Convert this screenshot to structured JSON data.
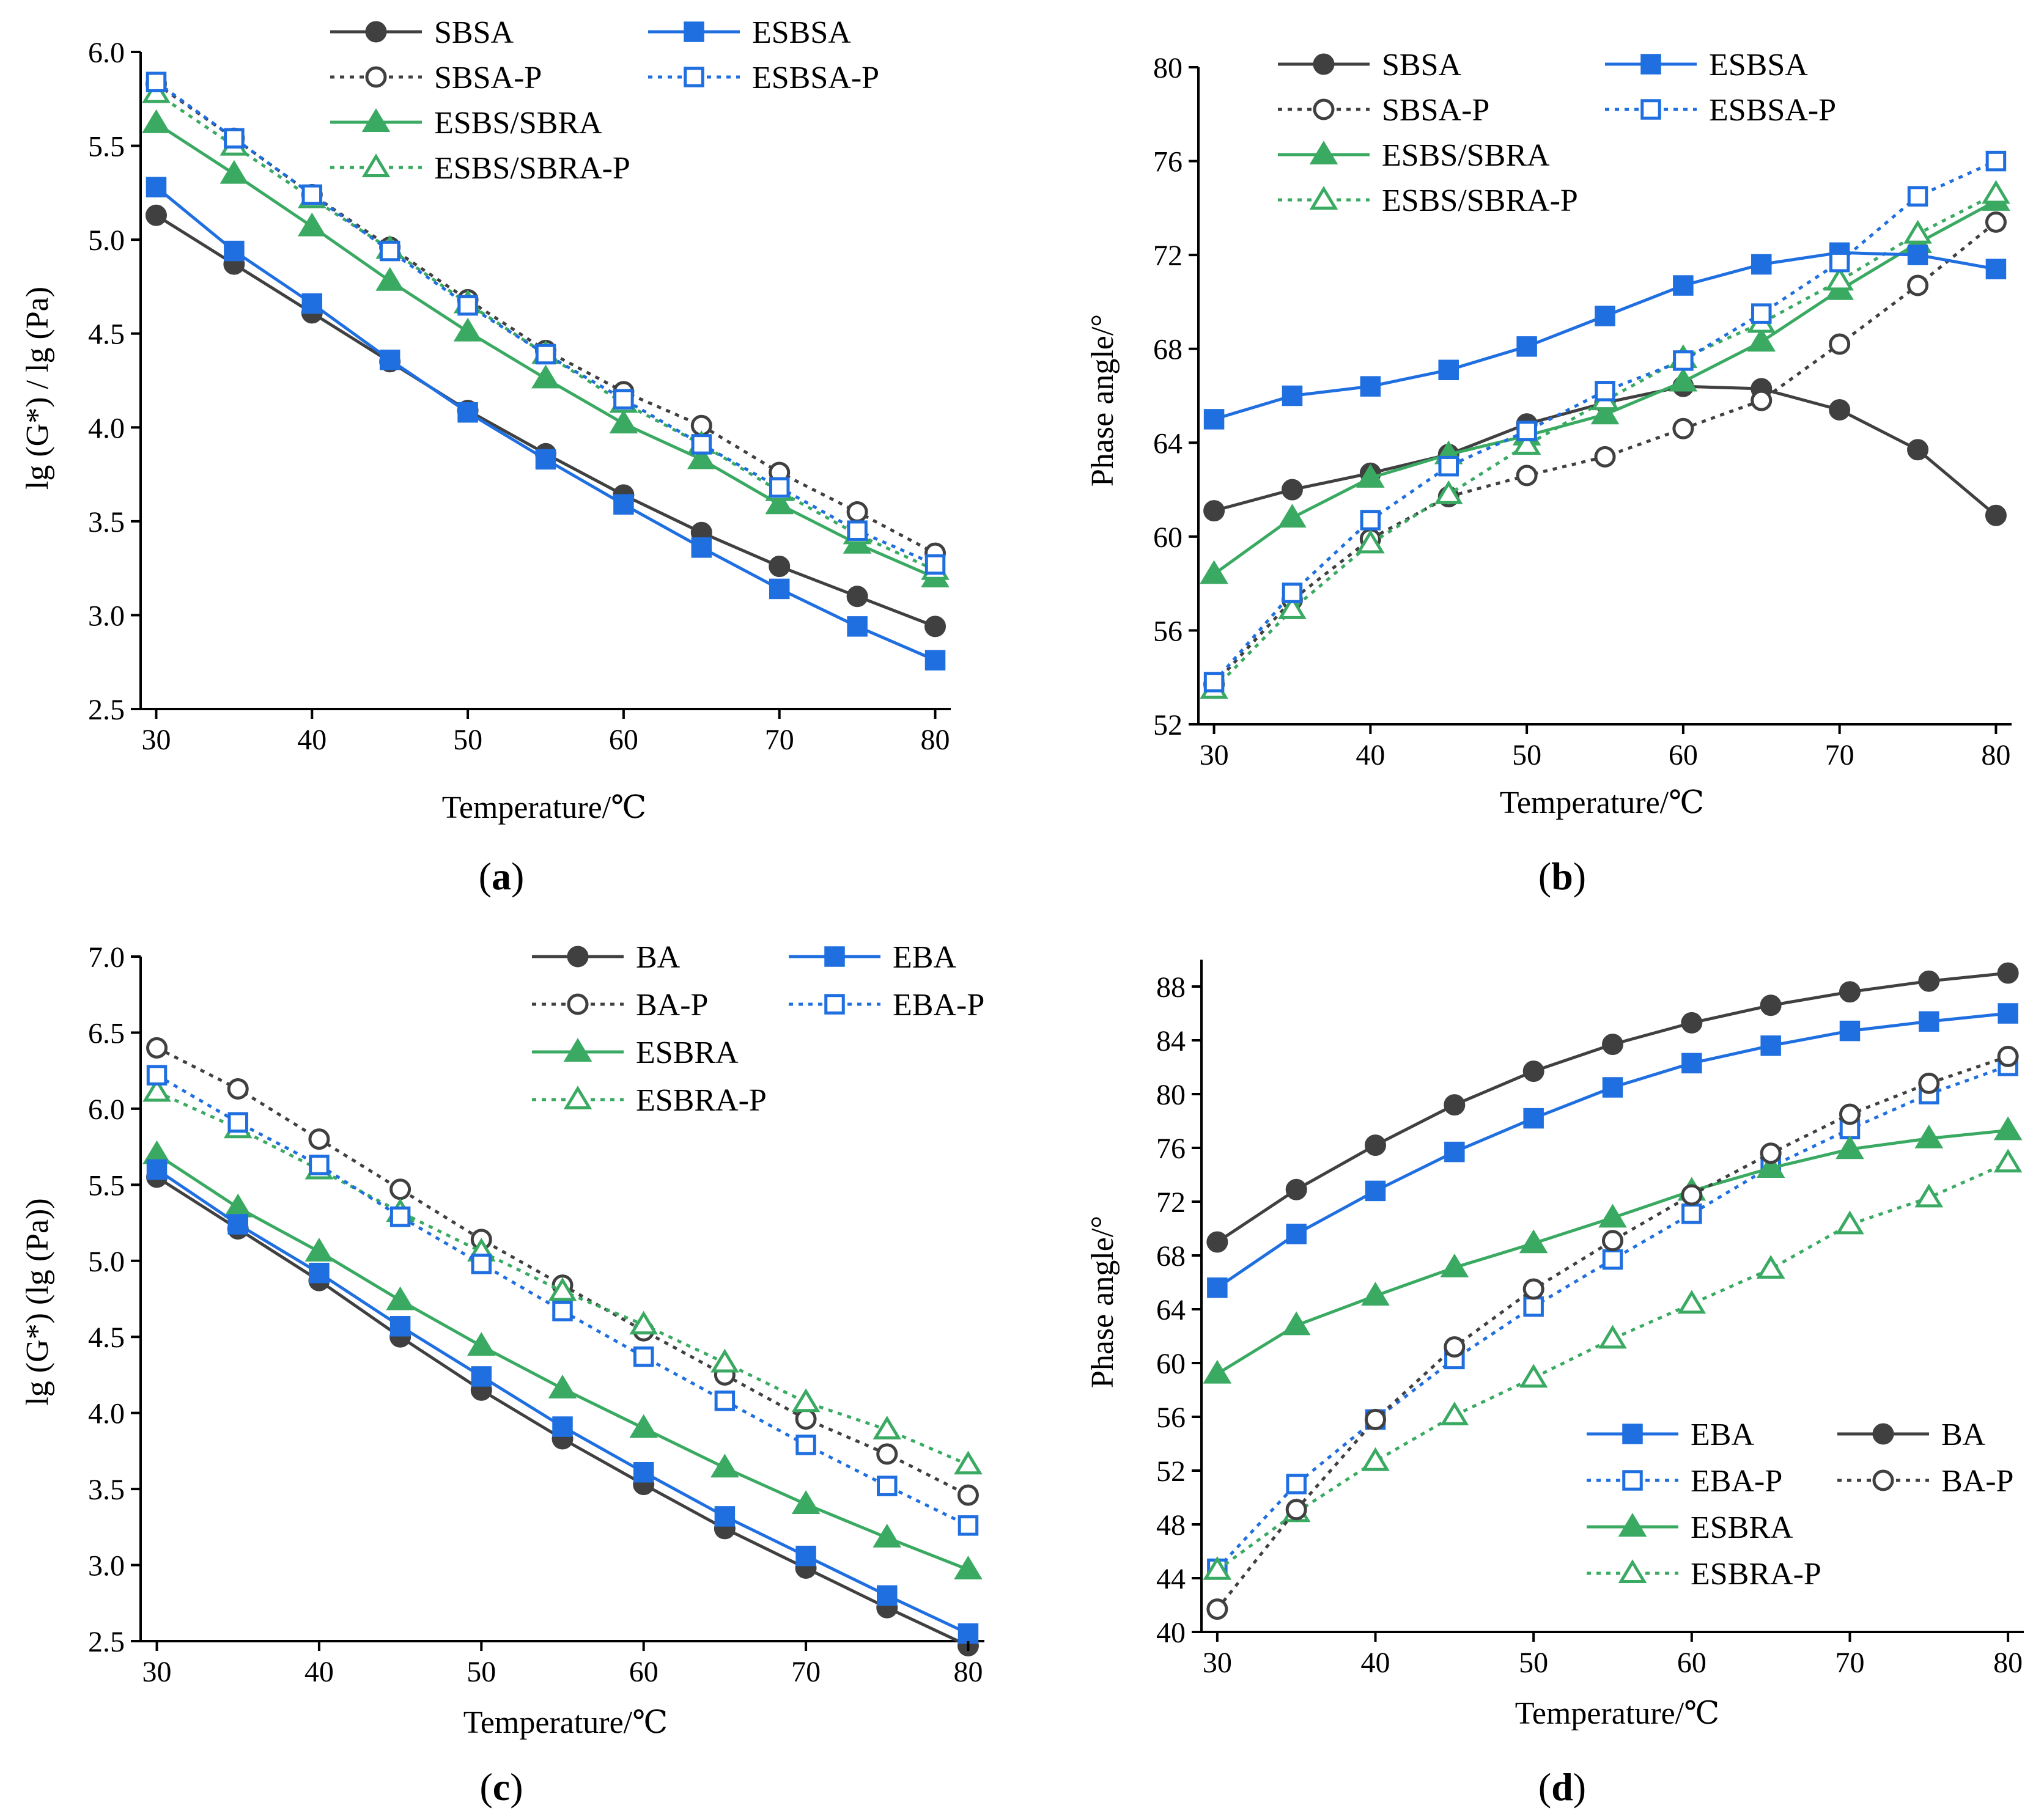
{
  "colors": {
    "gray": "#404040",
    "blue": "#1f6fe0",
    "green": "#3aaa62"
  },
  "chart_data": [
    {
      "panel": "a",
      "caption_letter": "a",
      "type": "line",
      "xlabel": "Temperature/℃",
      "ylabel": "lg (G*) / lg (Pa)",
      "x": [
        30,
        35,
        40,
        45,
        50,
        55,
        60,
        65,
        70,
        75,
        80
      ],
      "xlim": [
        29,
        81
      ],
      "ylim": [
        2.5,
        6.0
      ],
      "xticks": [
        "30",
        "40",
        "50",
        "60",
        "70",
        "80"
      ],
      "yticks": [
        "2.5",
        "3.0",
        "3.5",
        "4.0",
        "4.5",
        "5.0",
        "5.5",
        "6.0"
      ],
      "legend_placement": "top",
      "series": [
        {
          "name": "SBSA",
          "color": "gray",
          "marker": "circle",
          "filled": true,
          "dashed": false,
          "values": [
            5.13,
            4.87,
            4.61,
            4.35,
            4.09,
            3.86,
            3.64,
            3.44,
            3.26,
            3.1,
            2.94
          ]
        },
        {
          "name": "SBSA-P",
          "color": "gray",
          "marker": "circle",
          "filled": false,
          "dashed": true,
          "values": [
            5.83,
            5.54,
            5.24,
            4.96,
            4.68,
            4.41,
            4.19,
            4.01,
            3.76,
            3.55,
            3.33
          ]
        },
        {
          "name": "ESBS/SBRA",
          "color": "green",
          "marker": "triangle",
          "filled": true,
          "dashed": false,
          "values": [
            5.62,
            5.35,
            5.07,
            4.78,
            4.51,
            4.26,
            4.02,
            3.83,
            3.59,
            3.38,
            3.2
          ]
        },
        {
          "name": "ESBS/SBRA-P",
          "color": "green",
          "marker": "triangle",
          "filled": false,
          "dashed": true,
          "values": [
            5.78,
            5.5,
            5.22,
            4.95,
            4.66,
            4.39,
            4.13,
            3.91,
            3.66,
            3.43,
            3.24
          ]
        },
        {
          "name": "ESBSA",
          "color": "blue",
          "marker": "square",
          "filled": true,
          "dashed": false,
          "values": [
            5.28,
            4.94,
            4.66,
            4.36,
            4.08,
            3.83,
            3.59,
            3.36,
            3.14,
            2.94,
            2.76
          ]
        },
        {
          "name": "ESBSA-P",
          "color": "blue",
          "marker": "square",
          "filled": false,
          "dashed": true,
          "values": [
            5.84,
            5.54,
            5.24,
            4.94,
            4.65,
            4.39,
            4.15,
            3.91,
            3.68,
            3.45,
            3.27
          ]
        }
      ]
    },
    {
      "panel": "b",
      "caption_letter": "b",
      "type": "line",
      "xlabel": "Temperature/℃",
      "ylabel": "Phase angle/°",
      "x": [
        30,
        35,
        40,
        45,
        50,
        55,
        60,
        65,
        70,
        75,
        80
      ],
      "xlim": [
        29,
        81
      ],
      "ylim": [
        52,
        80
      ],
      "xticks": [
        "30",
        "40",
        "50",
        "60",
        "70",
        "80"
      ],
      "yticks": [
        "52",
        "56",
        "60",
        "64",
        "68",
        "72",
        "76",
        "80"
      ],
      "legend_placement": "top",
      "series": [
        {
          "name": "SBSA",
          "color": "gray",
          "marker": "circle",
          "filled": true,
          "dashed": false,
          "values": [
            61.1,
            62.0,
            62.7,
            63.5,
            64.8,
            65.7,
            66.4,
            66.3,
            65.4,
            63.7,
            60.9
          ]
        },
        {
          "name": "SBSA-P",
          "color": "gray",
          "marker": "circle",
          "filled": false,
          "dashed": true,
          "values": [
            53.7,
            57.3,
            59.9,
            61.7,
            62.6,
            63.4,
            64.6,
            65.8,
            68.2,
            70.7,
            73.4
          ]
        },
        {
          "name": "ESBS/SBRA",
          "color": "green",
          "marker": "triangle",
          "filled": true,
          "dashed": false,
          "values": [
            58.4,
            60.8,
            62.5,
            63.5,
            64.3,
            65.2,
            66.6,
            68.3,
            70.5,
            72.5,
            74.3
          ]
        },
        {
          "name": "ESBS/SBRA-P",
          "color": "green",
          "marker": "triangle",
          "filled": false,
          "dashed": true,
          "values": [
            53.5,
            56.9,
            59.7,
            61.8,
            63.9,
            65.8,
            67.6,
            69.1,
            70.9,
            72.9,
            74.6
          ]
        },
        {
          "name": "ESBSA",
          "color": "blue",
          "marker": "square",
          "filled": true,
          "dashed": false,
          "values": [
            65.0,
            66.0,
            66.4,
            67.1,
            68.1,
            69.4,
            70.7,
            71.6,
            72.1,
            72.0,
            71.4
          ]
        },
        {
          "name": "ESBSA-P",
          "color": "blue",
          "marker": "square",
          "filled": false,
          "dashed": true,
          "values": [
            53.8,
            57.6,
            60.7,
            63.0,
            64.5,
            66.2,
            67.5,
            69.5,
            71.7,
            74.5,
            76.0
          ]
        }
      ]
    },
    {
      "panel": "c",
      "caption_letter": "c",
      "type": "line",
      "xlabel": "Temperature/℃",
      "ylabel": "lg (G*) (lg (Pa))",
      "x": [
        30,
        35,
        40,
        45,
        50,
        55,
        60,
        65,
        70,
        75,
        80
      ],
      "xlim": [
        29,
        81
      ],
      "ylim": [
        2.5,
        7.0
      ],
      "xticks": [
        "30",
        "40",
        "50",
        "60",
        "70",
        "80"
      ],
      "yticks": [
        "2.5",
        "3.0",
        "3.5",
        "4.0",
        "4.5",
        "5.0",
        "5.5",
        "6.0",
        "6.5",
        "7.0"
      ],
      "legend_placement": "top-right",
      "series": [
        {
          "name": "BA",
          "color": "gray",
          "marker": "circle",
          "filled": true,
          "dashed": false,
          "values": [
            5.55,
            5.21,
            4.87,
            4.5,
            4.15,
            3.83,
            3.53,
            3.24,
            2.98,
            2.72,
            2.47
          ]
        },
        {
          "name": "BA-P",
          "color": "gray",
          "marker": "circle",
          "filled": false,
          "dashed": true,
          "values": [
            6.4,
            6.13,
            5.8,
            5.47,
            5.14,
            4.84,
            4.54,
            4.25,
            3.96,
            3.73,
            3.46
          ]
        },
        {
          "name": "ESBRA",
          "color": "green",
          "marker": "triangle",
          "filled": true,
          "dashed": false,
          "values": [
            5.7,
            5.35,
            5.06,
            4.74,
            4.44,
            4.16,
            3.9,
            3.64,
            3.4,
            3.18,
            2.97
          ]
        },
        {
          "name": "ESBRA-P",
          "color": "green",
          "marker": "triangle",
          "filled": false,
          "dashed": true,
          "values": [
            6.11,
            5.87,
            5.6,
            5.32,
            5.06,
            4.8,
            4.58,
            4.33,
            4.07,
            3.89,
            3.66
          ]
        },
        {
          "name": "EBA",
          "color": "blue",
          "marker": "square",
          "filled": true,
          "dashed": false,
          "values": [
            5.6,
            5.24,
            4.92,
            4.57,
            4.24,
            3.91,
            3.61,
            3.32,
            3.06,
            2.8,
            2.55
          ]
        },
        {
          "name": "EBA-P",
          "color": "blue",
          "marker": "square",
          "filled": false,
          "dashed": true,
          "values": [
            6.22,
            5.91,
            5.63,
            5.29,
            4.98,
            4.67,
            4.37,
            4.08,
            3.79,
            3.52,
            3.26
          ]
        }
      ]
    },
    {
      "panel": "d",
      "caption_letter": "d",
      "type": "line",
      "xlabel": "Temperature/℃",
      "ylabel": "Phase angle/°",
      "x": [
        30,
        35,
        40,
        45,
        50,
        55,
        60,
        65,
        70,
        75,
        80
      ],
      "xlim": [
        29,
        81
      ],
      "ylim": [
        40,
        90
      ],
      "xticks": [
        "30",
        "40",
        "50",
        "60",
        "70",
        "80"
      ],
      "yticks": [
        "40",
        "44",
        "48",
        "52",
        "56",
        "60",
        "64",
        "68",
        "72",
        "76",
        "80",
        "84",
        "88"
      ],
      "legend_placement": "bottom-right",
      "series": [
        {
          "name": "EBA",
          "color": "blue",
          "marker": "square",
          "filled": true,
          "dashed": false,
          "values": [
            65.6,
            69.6,
            72.8,
            75.7,
            78.2,
            80.5,
            82.3,
            83.6,
            84.7,
            85.4,
            86.0
          ]
        },
        {
          "name": "EBA-P",
          "color": "blue",
          "marker": "square",
          "filled": false,
          "dashed": true,
          "values": [
            44.7,
            51.0,
            55.8,
            60.3,
            64.2,
            67.7,
            71.1,
            74.6,
            77.4,
            80.0,
            82.1
          ]
        },
        {
          "name": "ESBRA",
          "color": "green",
          "marker": "triangle",
          "filled": true,
          "dashed": false,
          "values": [
            59.2,
            62.8,
            65.0,
            67.1,
            68.9,
            70.8,
            72.8,
            74.5,
            75.9,
            76.7,
            77.3
          ]
        },
        {
          "name": "ESBRA-P",
          "color": "green",
          "marker": "triangle",
          "filled": false,
          "dashed": true,
          "values": [
            44.6,
            48.9,
            52.7,
            56.1,
            58.9,
            61.8,
            64.4,
            67.0,
            70.3,
            72.3,
            74.9
          ]
        },
        {
          "name": "BA",
          "color": "gray",
          "marker": "circle",
          "filled": true,
          "dashed": false,
          "values": [
            69.0,
            72.9,
            76.2,
            79.2,
            81.7,
            83.7,
            85.3,
            86.6,
            87.6,
            88.4,
            89.0
          ]
        },
        {
          "name": "BA-P",
          "color": "gray",
          "marker": "circle",
          "filled": false,
          "dashed": true,
          "values": [
            41.7,
            49.1,
            55.8,
            61.2,
            65.5,
            69.1,
            72.5,
            75.6,
            78.5,
            80.8,
            82.8
          ]
        }
      ]
    }
  ]
}
